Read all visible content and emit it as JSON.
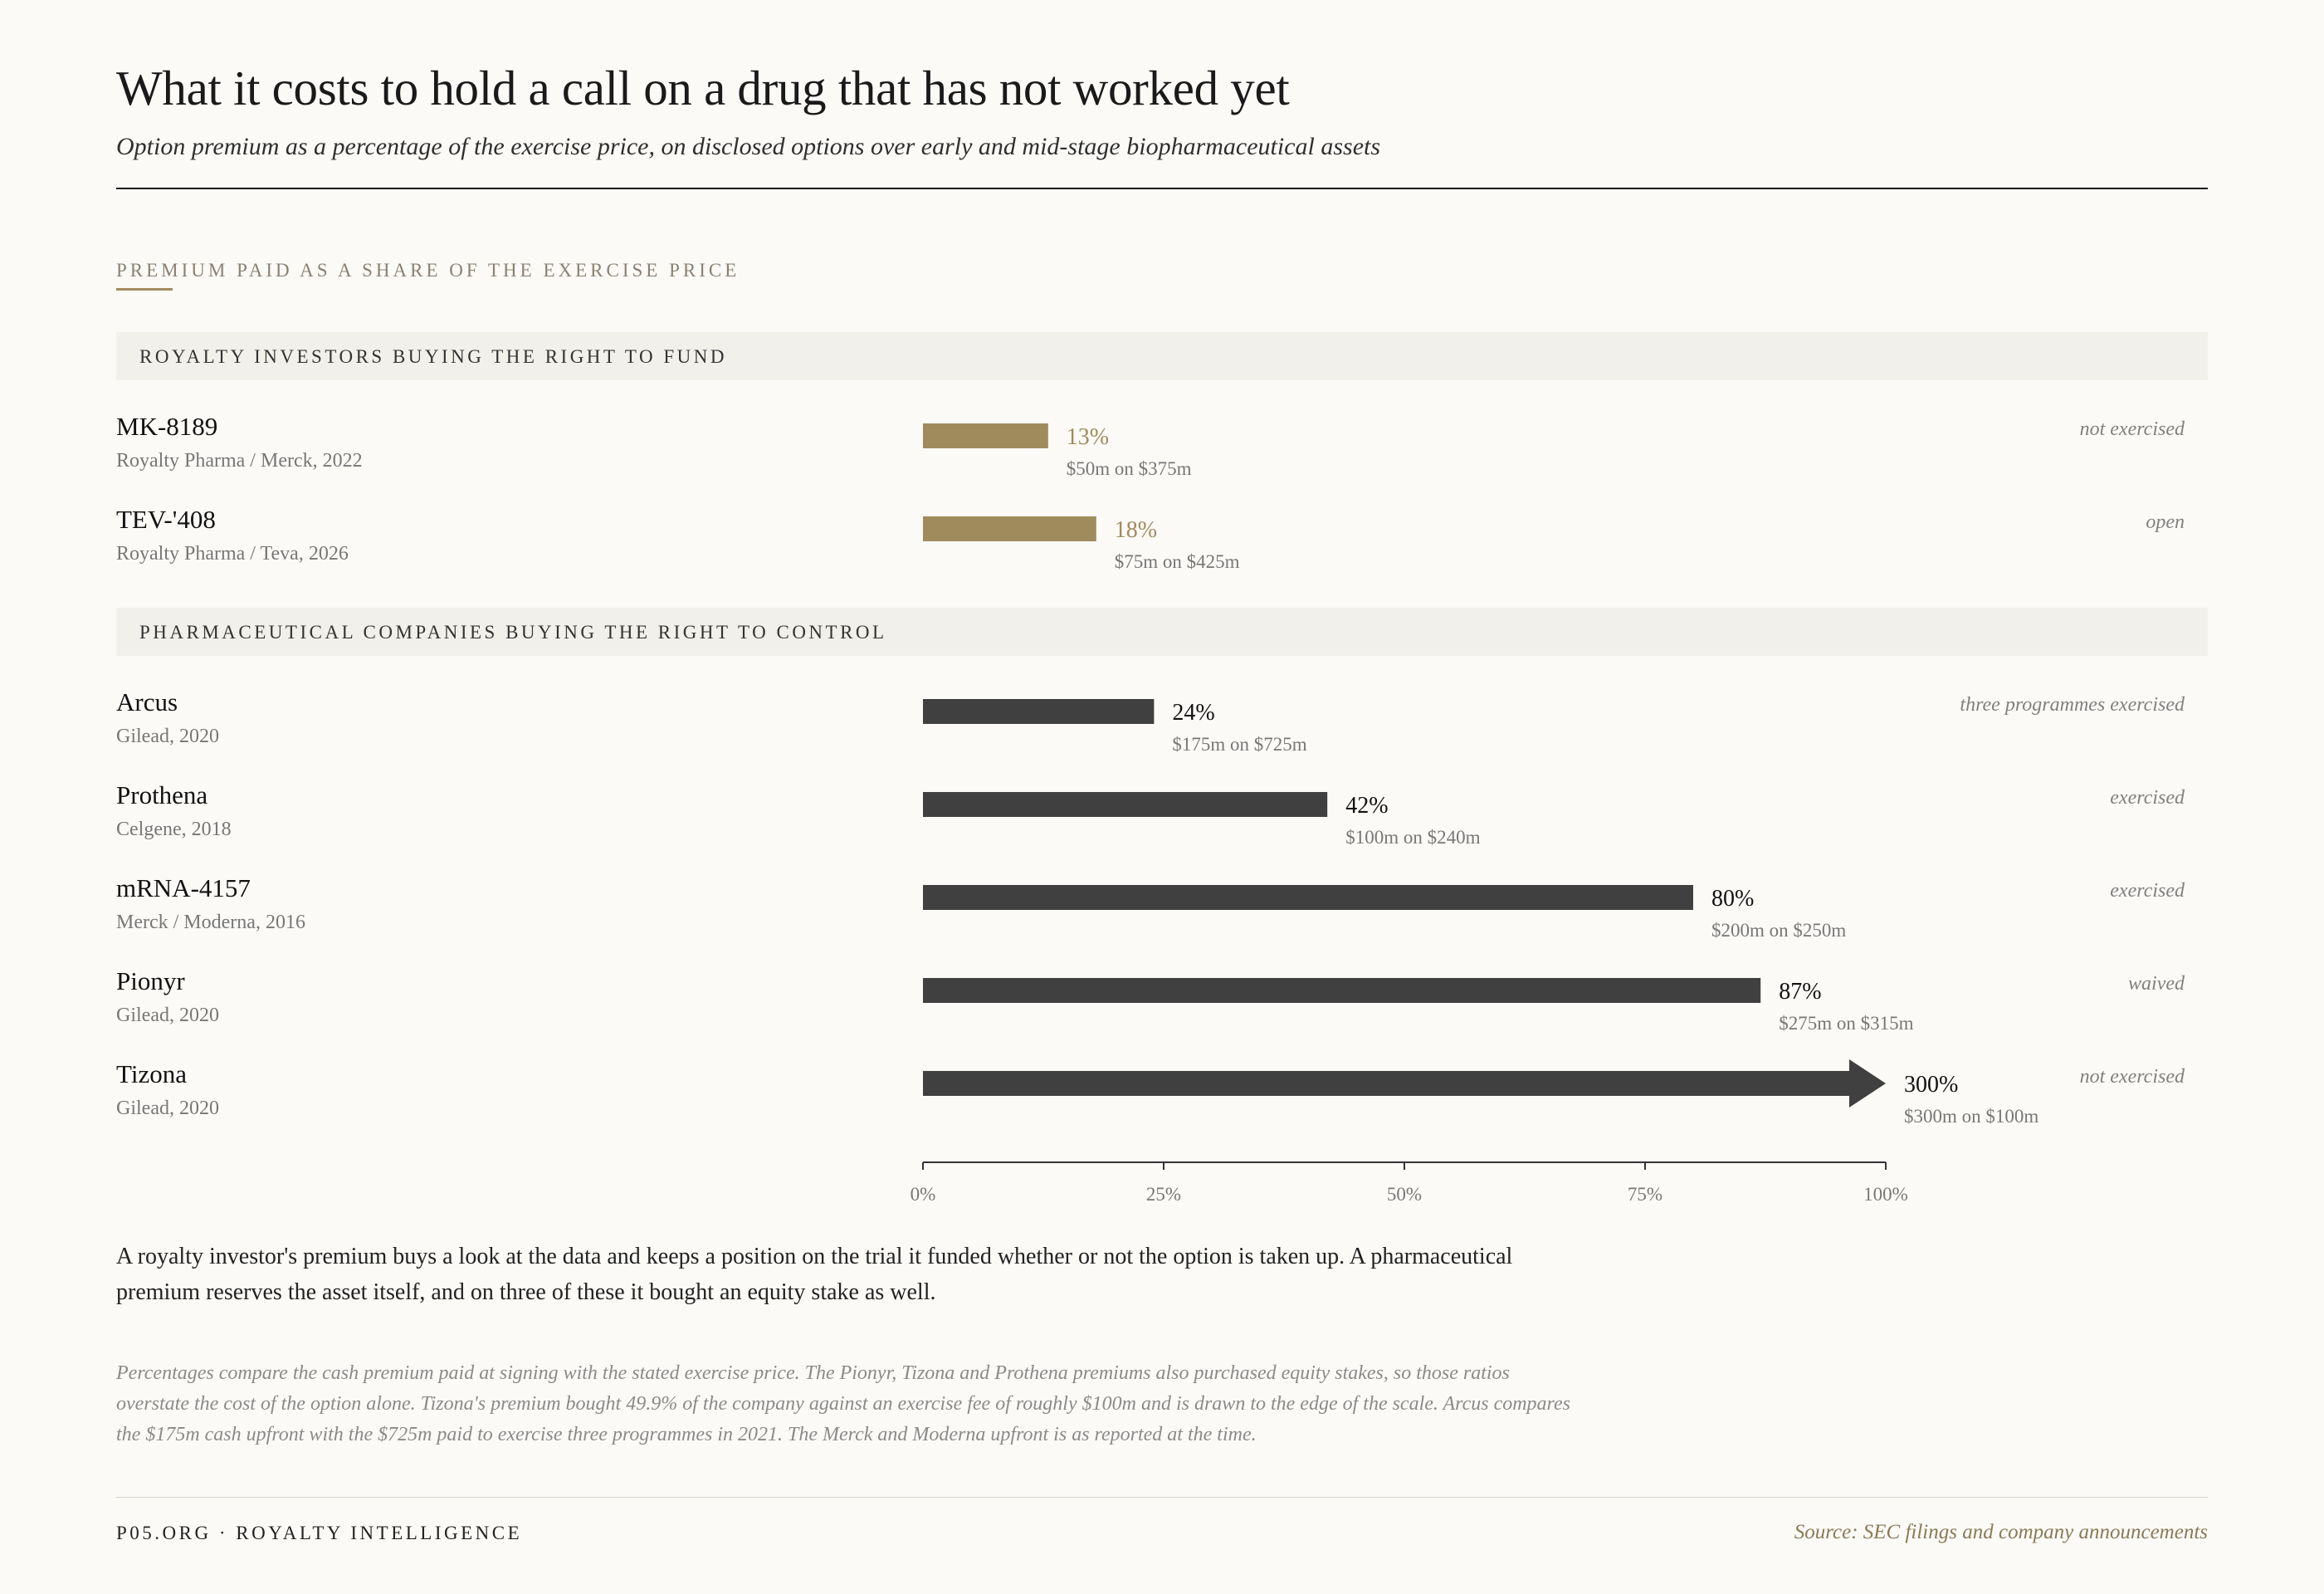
{
  "title": "What it costs to hold a call on a drug that has not worked yet",
  "subtitle": "Option premium as a percentage of the exercise price, on disclosed options over early and mid-stage biopharmaceutical assets",
  "kicker": "PREMIUM PAID AS A SHARE OF THE EXERCISE PRICE",
  "colors": {
    "royalty": "#a08b5c",
    "pharma": "#404040",
    "axis": "#333333"
  },
  "chart_data": {
    "type": "bar",
    "orientation": "horizontal",
    "xlim": [
      0,
      100
    ],
    "x_ticks": [
      0,
      25,
      50,
      75,
      100
    ],
    "x_tick_labels": [
      "0%",
      "25%",
      "50%",
      "75%",
      "100%"
    ],
    "groups": [
      {
        "label": "ROYALTY INVESTORS BUYING THE RIGHT TO FUND",
        "color": "#a08b5c",
        "rows": [
          {
            "name": "MK-8189",
            "meta": "Royalty Pharma / Merck, 2022",
            "value": 13,
            "value_label": "13%",
            "detail": "$50m on $375m",
            "status": "not exercised"
          },
          {
            "name": "TEV-'408",
            "meta": "Royalty Pharma / Teva, 2026",
            "value": 18,
            "value_label": "18%",
            "detail": "$75m on $425m",
            "status": "open"
          }
        ]
      },
      {
        "label": "PHARMACEUTICAL COMPANIES BUYING THE RIGHT TO CONTROL",
        "color": "#404040",
        "rows": [
          {
            "name": "Arcus",
            "meta": "Gilead, 2020",
            "value": 24,
            "value_label": "24%",
            "detail": "$175m on $725m",
            "status": "three programmes exercised"
          },
          {
            "name": "Prothena",
            "meta": "Celgene, 2018",
            "value": 42,
            "value_label": "42%",
            "detail": "$100m on $240m",
            "status": "exercised"
          },
          {
            "name": "mRNA-4157",
            "meta": "Merck / Moderna, 2016",
            "value": 80,
            "value_label": "80%",
            "detail": "$200m on $250m",
            "status": "exercised"
          },
          {
            "name": "Pionyr",
            "meta": "Gilead, 2020",
            "value": 87,
            "value_label": "87%",
            "detail": "$275m on $315m",
            "status": "waived"
          },
          {
            "name": "Tizona",
            "meta": "Gilead, 2020",
            "value": 300,
            "value_label": "300%",
            "detail": "$300m on $100m",
            "status": "not exercised",
            "clipped": true
          }
        ]
      }
    ]
  },
  "body_note": "A royalty investor's premium buys a look at the data and keeps a position on the trial it funded whether or not the option is taken up. A pharmaceutical premium reserves the asset itself, and on three of these it bought an equity stake as well.",
  "footnote": "Percentages compare the cash premium paid at signing with the stated exercise price. The Pionyr, Tizona and Prothena premiums also purchased equity stakes, so those ratios overstate the cost of the option alone. Tizona's premium bought 49.9% of the company against an exercise fee of roughly $100m and is drawn to the edge of the scale. Arcus compares the $175m cash upfront with the $725m paid to exercise three programmes in 2021. The Merck and Moderna upfront is as reported at the time.",
  "footer": {
    "brand": "P05.ORG · ROYALTY INTELLIGENCE",
    "source": "Source: SEC filings and company announcements"
  }
}
